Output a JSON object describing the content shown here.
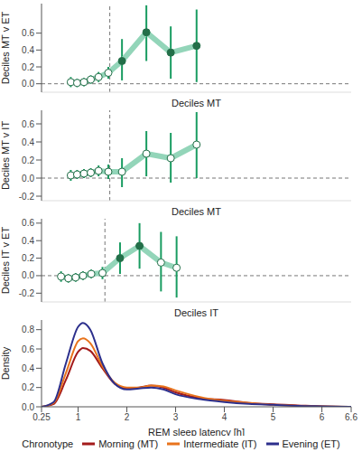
{
  "chart_data": [
    {
      "type": "pointrange",
      "ylabel": "Deciles MT v ET",
      "xlabel": "Deciles MT",
      "x": [
        0.85,
        0.98,
        1.12,
        1.26,
        1.42,
        1.62,
        1.9,
        2.4,
        2.9,
        3.43
      ],
      "values": [
        0.02,
        0.01,
        0.02,
        0.05,
        0.08,
        0.13,
        0.27,
        0.61,
        0.37,
        0.45
      ],
      "lower": [
        -0.04,
        -0.04,
        -0.03,
        0.0,
        0.02,
        0.06,
        0.04,
        0.27,
        0.06,
        0.02
      ],
      "upper": [
        0.08,
        0.06,
        0.07,
        0.1,
        0.14,
        0.2,
        0.53,
        0.93,
        0.68,
        0.88
      ],
      "color": "#93d5b9",
      "colors": [
        "#ffffff",
        "#ffffff",
        "#ffffff",
        "#ffffff",
        "#ffffff",
        "#ffffff",
        "#236f49",
        "#236f49",
        "#236f49",
        "#236f49"
      ],
      "xlim": [
        0.25,
        6.6
      ],
      "ylim": [
        -0.1,
        0.95
      ],
      "yticks": [
        {
          "value": 0,
          "label": "0.0"
        },
        0.2,
        0.4,
        0.6
      ],
      "reference_x": 1.65,
      "reference_y": 0,
      "tick_labels": "y"
    },
    {
      "type": "pointrange",
      "ylabel": "Deciles MT v IT",
      "xlabel": "Deciles MT",
      "x": [
        0.85,
        0.98,
        1.12,
        1.26,
        1.42,
        1.62,
        1.9,
        2.4,
        2.9,
        3.43
      ],
      "values": [
        0.03,
        0.04,
        0.05,
        0.06,
        0.08,
        0.07,
        0.07,
        0.27,
        0.22,
        0.37
      ],
      "lower": [
        -0.03,
        -0.01,
        0.0,
        0.01,
        0.02,
        -0.01,
        -0.1,
        0.02,
        -0.05,
        0.0
      ],
      "upper": [
        0.09,
        0.09,
        0.1,
        0.11,
        0.14,
        0.15,
        0.22,
        0.52,
        0.5,
        0.73
      ],
      "color": "#93d5b9",
      "colors": [
        "#ffffff",
        "#ffffff",
        "#ffffff",
        "#ffffff",
        "#ffffff",
        "#ffffff",
        "#ffffff",
        "#ffffff",
        "#ffffff",
        "#ffffff"
      ],
      "xlim": [
        0.25,
        6.6
      ],
      "ylim": [
        -0.25,
        0.75
      ],
      "yticks": [
        -0.2,
        {
          "value": 0,
          "label": "0.0"
        },
        0.2,
        0.4,
        0.6
      ],
      "reference_x": 1.65,
      "reference_y": 0,
      "tick_labels": "y"
    },
    {
      "type": "pointrange",
      "ylabel": "Deciles IT v ET",
      "xlabel": "Deciles IT",
      "x": [
        0.65,
        0.8,
        0.95,
        1.1,
        1.27,
        1.5,
        1.86,
        2.26,
        2.7,
        3.02
      ],
      "values": [
        -0.01,
        -0.03,
        -0.02,
        0.0,
        0.02,
        0.03,
        0.2,
        0.34,
        0.15,
        0.09
      ],
      "lower": [
        -0.07,
        -0.08,
        -0.07,
        -0.05,
        -0.03,
        -0.04,
        0.02,
        0.08,
        -0.18,
        -0.25
      ],
      "upper": [
        0.05,
        0.02,
        0.03,
        0.05,
        0.07,
        0.1,
        0.38,
        0.6,
        0.5,
        0.45
      ],
      "color": "#93d5b9",
      "colors": [
        "#ffffff",
        "#ffffff",
        "#ffffff",
        "#ffffff",
        "#ffffff",
        "#ffffff",
        "#236f49",
        "#236f49",
        "#ffffff",
        "#ffffff"
      ],
      "xlim": [
        0.25,
        6.6
      ],
      "ylim": [
        -0.3,
        0.65
      ],
      "yticks": [
        -0.2,
        {
          "value": 0,
          "label": "0.0"
        },
        0.2,
        0.4,
        0.6
      ],
      "reference_x": 1.55,
      "reference_y": 0,
      "tick_labels": "y"
    },
    {
      "type": "line",
      "ylabel": "Density",
      "xlabel": "REM sleep latency [h]",
      "x": [
        0.25,
        0.5,
        0.75,
        1.0,
        1.1,
        1.25,
        1.5,
        1.75,
        2.0,
        2.25,
        2.5,
        2.75,
        3.0,
        3.5,
        4.0,
        4.5,
        5.0,
        5.5,
        6.0,
        6.6
      ],
      "series": [
        {
          "name": "Morning (MT)",
          "color": "#a31a1a",
          "values": [
            0.0,
            0.03,
            0.28,
            0.57,
            0.61,
            0.58,
            0.4,
            0.24,
            0.19,
            0.2,
            0.22,
            0.2,
            0.15,
            0.09,
            0.07,
            0.04,
            0.025,
            0.015,
            0.005,
            0.0
          ]
        },
        {
          "name": "Intermediate (IT)",
          "color": "#e8731c",
          "values": [
            0.0,
            0.04,
            0.35,
            0.68,
            0.71,
            0.66,
            0.42,
            0.25,
            0.2,
            0.2,
            0.22,
            0.21,
            0.17,
            0.1,
            0.06,
            0.04,
            0.02,
            0.01,
            0.005,
            0.0
          ]
        },
        {
          "name": "Evening (ET)",
          "color": "#2c2f8c",
          "values": [
            0.0,
            0.05,
            0.45,
            0.83,
            0.87,
            0.8,
            0.45,
            0.24,
            0.18,
            0.19,
            0.2,
            0.18,
            0.13,
            0.08,
            0.05,
            0.03,
            0.02,
            0.01,
            0.005,
            0.0
          ]
        }
      ],
      "xlim": [
        0.25,
        6.6
      ],
      "xticks": [
        0.25,
        1,
        2,
        3,
        4,
        5,
        6,
        6.6
      ],
      "ylim": [
        0,
        0.9
      ],
      "yticks": [
        {
          "value": 0,
          "label": "0.0"
        },
        0.2,
        0.4,
        0.6,
        0.8
      ],
      "legend": "bottom",
      "legend_title": "Chronotype"
    }
  ]
}
